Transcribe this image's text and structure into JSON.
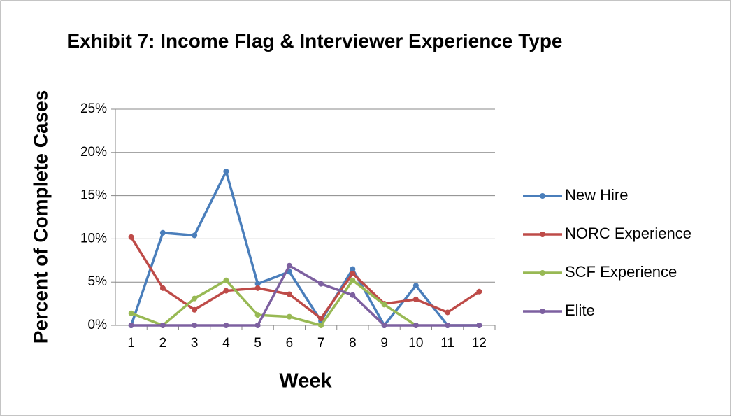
{
  "chart_data": {
    "type": "line",
    "title": "Exhibit 7: Income Flag & Interviewer Experience Type",
    "x_label": "Week",
    "y_label": "Percent of Complete Cases",
    "categories": [
      "1",
      "2",
      "3",
      "4",
      "5",
      "6",
      "7",
      "8",
      "9",
      "10",
      "11",
      "12"
    ],
    "series": [
      {
        "name": "New Hire",
        "color": "#4a7ebb",
        "values": [
          0,
          10.7,
          10.4,
          17.8,
          4.8,
          6.2,
          0.5,
          6.5,
          0,
          4.6,
          0,
          0
        ]
      },
      {
        "name": "NORC Experience",
        "color": "#be4b48",
        "values": [
          10.2,
          4.3,
          1.8,
          4.0,
          4.3,
          3.6,
          0.8,
          6.0,
          2.5,
          3.0,
          1.5,
          3.9
        ]
      },
      {
        "name": "SCF Experience",
        "color": "#98b954",
        "values": [
          1.4,
          0,
          3.1,
          5.2,
          1.2,
          1.0,
          0,
          5.2,
          2.4,
          0,
          null,
          null
        ]
      },
      {
        "name": "Elite",
        "color": "#7d60a0",
        "values": [
          0,
          0,
          0,
          0,
          0,
          6.9,
          4.8,
          3.5,
          0,
          0,
          0,
          0
        ]
      }
    ],
    "ylim": [
      0,
      25
    ],
    "yticks": [
      {
        "value": 0,
        "label": "0%"
      },
      {
        "value": 5,
        "label": "5%"
      },
      {
        "value": 10,
        "label": "10%"
      },
      {
        "value": 15,
        "label": "15%"
      },
      {
        "value": 20,
        "label": "20%"
      },
      {
        "value": 25,
        "label": "25%"
      }
    ],
    "grid": true,
    "legend": "right"
  }
}
